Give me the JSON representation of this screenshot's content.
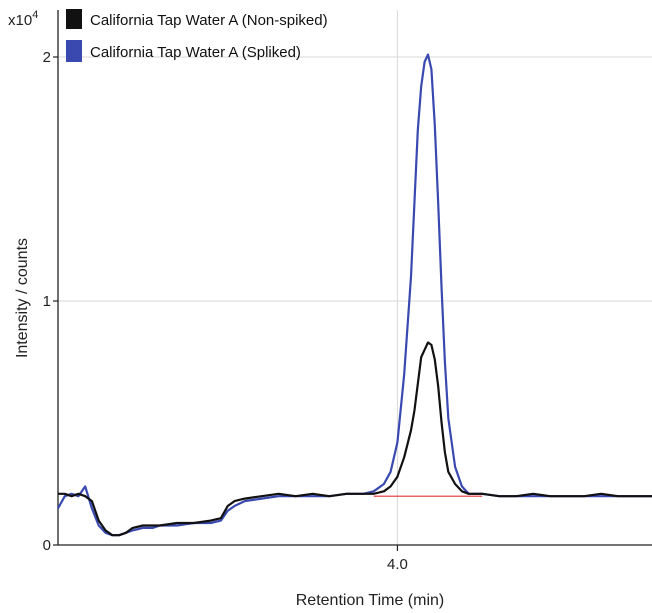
{
  "chart_data": {
    "type": "line",
    "title": "",
    "xlabel": "Retention Time (min)",
    "ylabel": "Intensity / counts",
    "y_scale_label": "x10",
    "y_scale_exponent": "4",
    "xlim": [
      3.0,
      4.75
    ],
    "ylim": [
      0,
      2.1
    ],
    "x_ticks": [
      {
        "value": 4.0,
        "label": "4.0"
      }
    ],
    "y_ticks": [
      {
        "value": 0,
        "label": "0"
      },
      {
        "value": 1,
        "label": "1"
      },
      {
        "value": 2,
        "label": "2"
      }
    ],
    "grid": true,
    "legend_position": "top-left",
    "baseline": {
      "x": [
        3.93,
        4.25
      ],
      "y": [
        0.2,
        0.2
      ],
      "color": "#e03030"
    },
    "series": [
      {
        "name": "California Tap Water A (Non-spiked)",
        "color": "#111111",
        "x": [
          3.0,
          3.02,
          3.04,
          3.06,
          3.08,
          3.1,
          3.12,
          3.14,
          3.16,
          3.18,
          3.2,
          3.22,
          3.25,
          3.28,
          3.3,
          3.35,
          3.4,
          3.45,
          3.48,
          3.5,
          3.52,
          3.55,
          3.6,
          3.65,
          3.7,
          3.75,
          3.8,
          3.85,
          3.9,
          3.93,
          3.96,
          3.98,
          4.0,
          4.02,
          4.04,
          4.05,
          4.06,
          4.07,
          4.08,
          4.09,
          4.1,
          4.11,
          4.12,
          4.13,
          4.14,
          4.15,
          4.17,
          4.19,
          4.21,
          4.25,
          4.3,
          4.35,
          4.4,
          4.45,
          4.5,
          4.55,
          4.6,
          4.65,
          4.7,
          4.75
        ],
        "y": [
          0.21,
          0.21,
          0.2,
          0.21,
          0.2,
          0.18,
          0.1,
          0.06,
          0.04,
          0.04,
          0.05,
          0.07,
          0.08,
          0.08,
          0.08,
          0.09,
          0.09,
          0.1,
          0.11,
          0.16,
          0.18,
          0.19,
          0.2,
          0.21,
          0.2,
          0.21,
          0.2,
          0.21,
          0.21,
          0.21,
          0.22,
          0.24,
          0.28,
          0.36,
          0.47,
          0.55,
          0.66,
          0.77,
          0.8,
          0.83,
          0.82,
          0.76,
          0.65,
          0.5,
          0.38,
          0.3,
          0.25,
          0.22,
          0.21,
          0.21,
          0.2,
          0.2,
          0.21,
          0.2,
          0.2,
          0.2,
          0.21,
          0.2,
          0.2,
          0.2
        ]
      },
      {
        "name": "California Tap Water A (Spliked)",
        "color": "#3a49b0",
        "x": [
          3.0,
          3.02,
          3.04,
          3.06,
          3.08,
          3.1,
          3.12,
          3.14,
          3.16,
          3.18,
          3.2,
          3.22,
          3.25,
          3.28,
          3.3,
          3.35,
          3.4,
          3.45,
          3.48,
          3.5,
          3.52,
          3.55,
          3.6,
          3.65,
          3.7,
          3.75,
          3.8,
          3.85,
          3.9,
          3.93,
          3.96,
          3.98,
          4.0,
          4.02,
          4.04,
          4.05,
          4.06,
          4.07,
          4.08,
          4.09,
          4.1,
          4.11,
          4.12,
          4.13,
          4.14,
          4.15,
          4.17,
          4.19,
          4.21,
          4.25,
          4.3,
          4.35,
          4.4,
          4.45,
          4.5,
          4.55,
          4.6,
          4.65,
          4.7,
          4.75
        ],
        "y": [
          0.15,
          0.2,
          0.21,
          0.2,
          0.24,
          0.15,
          0.08,
          0.05,
          0.04,
          0.04,
          0.05,
          0.06,
          0.07,
          0.07,
          0.08,
          0.08,
          0.09,
          0.09,
          0.1,
          0.14,
          0.16,
          0.18,
          0.19,
          0.2,
          0.2,
          0.2,
          0.2,
          0.21,
          0.21,
          0.22,
          0.25,
          0.3,
          0.42,
          0.7,
          1.1,
          1.4,
          1.7,
          1.88,
          1.98,
          2.01,
          1.95,
          1.72,
          1.4,
          1.05,
          0.75,
          0.52,
          0.32,
          0.24,
          0.21,
          0.21,
          0.2,
          0.2,
          0.2,
          0.2,
          0.2,
          0.2,
          0.2,
          0.2,
          0.2,
          0.2
        ]
      }
    ]
  }
}
